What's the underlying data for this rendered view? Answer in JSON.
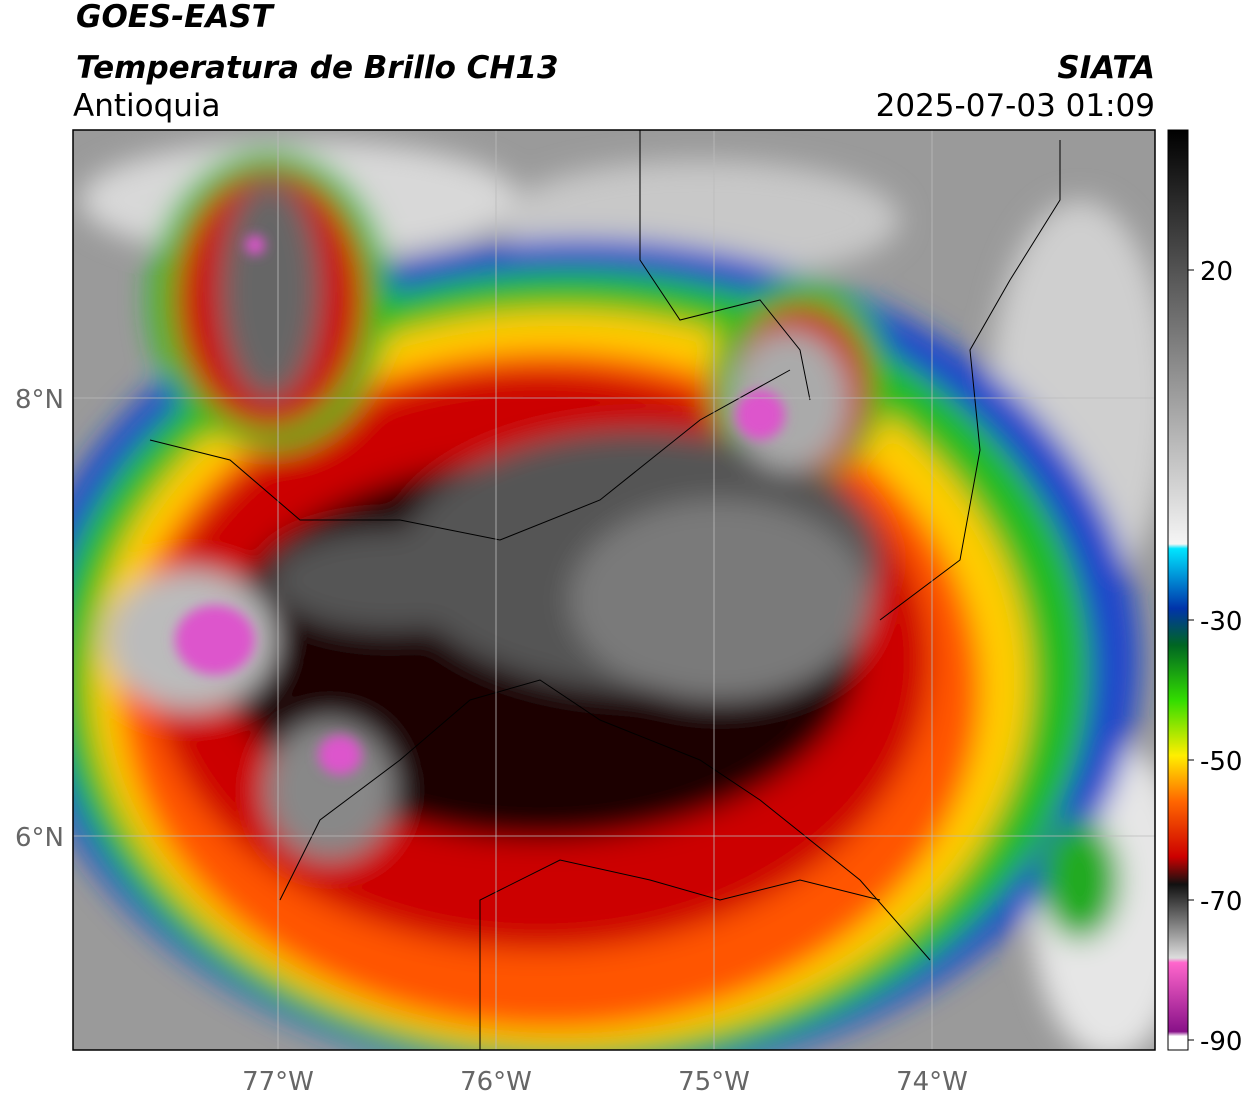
{
  "header": {
    "satellite": "GOES-EAST",
    "product": "Temperatura de Brillo CH13",
    "region": "Antioquia",
    "agency": "SIATA",
    "timestamp": "2025-07-03 01:09"
  },
  "map": {
    "lat_labels": [
      "8°N",
      "6°N"
    ],
    "lon_labels": [
      "77°W",
      "76°W",
      "75°W",
      "74°W"
    ]
  },
  "colorbar": {
    "ticks": [
      20,
      -30,
      -50,
      -70,
      -90
    ]
  }
}
